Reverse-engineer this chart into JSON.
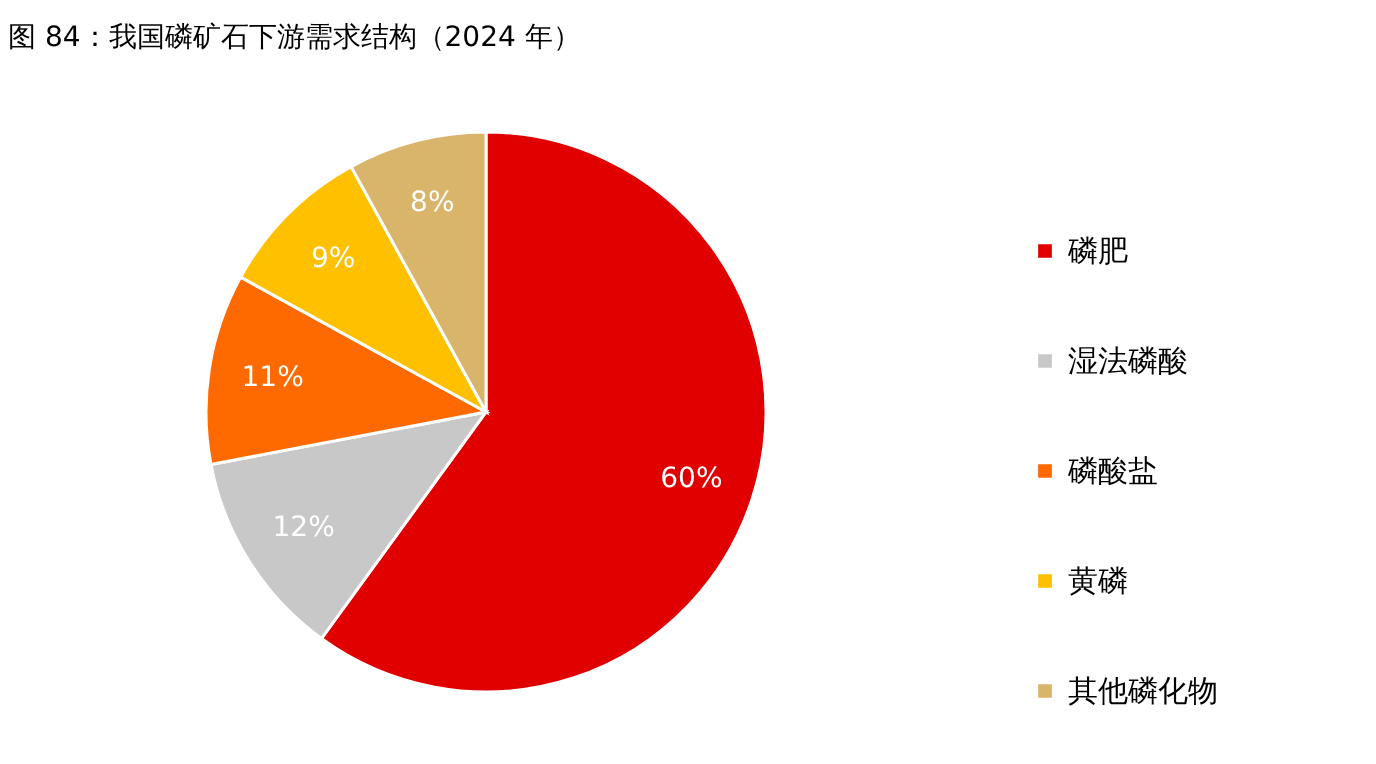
{
  "chart_data": {
    "type": "pie",
    "title": "图 84：我国磷矿石下游需求结构（2024 年）",
    "categories": [
      "磷肥",
      "湿法磷酸",
      "磷酸盐",
      "黄磷",
      "其他磷化物"
    ],
    "values": [
      60,
      12,
      11,
      9,
      8
    ],
    "colors": [
      "#e00000",
      "#c8c8c8",
      "#ff6a00",
      "#ffc000",
      "#d9b56c"
    ],
    "value_labels": [
      "60%",
      "12%",
      "11%",
      "9%",
      "8%"
    ],
    "legend": "right"
  }
}
